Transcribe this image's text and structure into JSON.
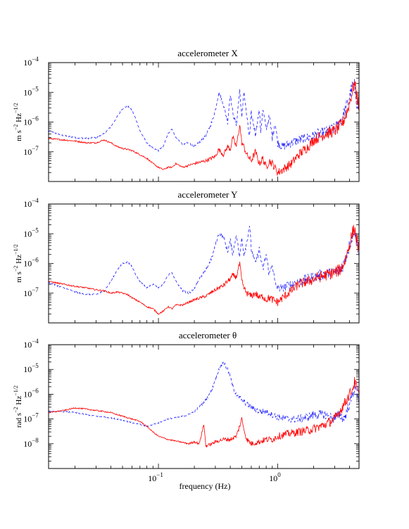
{
  "chart_data": [
    {
      "type": "line",
      "title": "accelerometer X",
      "ylabel": "m s^{-2} Hz^{-1/2}",
      "xscale": "log",
      "yscale": "log",
      "xlim": [
        0.012,
        4.8
      ],
      "ylim": [
        1e-08,
        0.0001
      ],
      "yticks": [
        1e-07,
        1e-06,
        1e-05,
        0.0001
      ],
      "xticks": [
        0.1,
        1
      ],
      "series": [
        {
          "style": "dashed",
          "color": "#1f1fff",
          "x": [
            0.012,
            0.016,
            0.02,
            0.025,
            0.03,
            0.035,
            0.04,
            0.045,
            0.05,
            0.055,
            0.06,
            0.065,
            0.07,
            0.08,
            0.09,
            0.1,
            0.11,
            0.12,
            0.13,
            0.14,
            0.16,
            0.18,
            0.2,
            0.22,
            0.25,
            0.28,
            0.3,
            0.32,
            0.35,
            0.38,
            0.4,
            0.42,
            0.45,
            0.48,
            0.5,
            0.52,
            0.55,
            0.58,
            0.6,
            0.65,
            0.7,
            0.72,
            0.75,
            0.8,
            0.85,
            0.9,
            0.95,
            1.0,
            1.1,
            1.3,
            1.5,
            1.8,
            2.0,
            2.5,
            3.0,
            3.3,
            3.6,
            3.9,
            4.2,
            4.4,
            4.6,
            4.8
          ],
          "y": [
            5e-07,
            3.5e-07,
            3e-07,
            2.8e-07,
            3e-07,
            4e-07,
            7e-07,
            1.5e-06,
            2.8e-06,
            3.5e-06,
            2.5e-06,
            1.2e-06,
            5e-07,
            2e-07,
            1.3e-07,
            1.1e-07,
            1.5e-07,
            4e-07,
            6e-07,
            3e-07,
            1.8e-07,
            2e-07,
            1.5e-07,
            2e-07,
            3.5e-07,
            1e-06,
            2.5e-06,
            1e-05,
            4e-06,
            1e-06,
            9e-06,
            2e-06,
            8e-07,
            1.2e-05,
            1.3e-06,
            1.2e-05,
            1.5e-06,
            3e-07,
            2e-06,
            4e-07,
            2.5e-06,
            5e-07,
            2.5e-06,
            6e-07,
            1.5e-06,
            3e-07,
            1e-06,
            2e-07,
            1.5e-07,
            2e-07,
            2.5e-07,
            3e-07,
            3.5e-07,
            4.5e-07,
            6e-07,
            1e-06,
            2e-06,
            5e-06,
            1.5e-05,
            1.7e-05,
            5e-06,
            2.5e-06
          ]
        },
        {
          "style": "solid",
          "color": "#ff0000",
          "x": [
            0.012,
            0.016,
            0.02,
            0.025,
            0.03,
            0.035,
            0.04,
            0.045,
            0.05,
            0.055,
            0.06,
            0.07,
            0.08,
            0.09,
            0.1,
            0.11,
            0.12,
            0.13,
            0.14,
            0.16,
            0.18,
            0.2,
            0.25,
            0.3,
            0.32,
            0.35,
            0.38,
            0.4,
            0.42,
            0.45,
            0.48,
            0.5,
            0.52,
            0.55,
            0.6,
            0.65,
            0.7,
            0.75,
            0.8,
            0.85,
            0.9,
            1.0,
            1.1,
            1.3,
            1.5,
            1.8,
            2.0,
            2.5,
            3.0,
            3.3,
            3.6,
            3.9,
            4.2,
            4.4,
            4.6,
            4.8
          ],
          "y": [
            2.8e-07,
            2.5e-07,
            2.3e-07,
            2e-07,
            2e-07,
            2.5e-07,
            2e-07,
            1.5e-07,
            1.3e-07,
            1.2e-07,
            1.1e-07,
            8e-08,
            6e-08,
            4e-08,
            3e-08,
            2.5e-08,
            3e-08,
            3e-08,
            4e-08,
            3e-08,
            3.5e-08,
            4e-08,
            5e-08,
            7e-08,
            1.2e-07,
            8e-08,
            1.5e-07,
            1.2e-07,
            3e-07,
            1.5e-07,
            8e-07,
            2e-07,
            1.5e-07,
            8e-08,
            5e-08,
            1e-07,
            4e-08,
            6e-08,
            3e-08,
            5e-08,
            4e-08,
            2e-08,
            2.5e-08,
            4e-08,
            8e-08,
            1.5e-07,
            2.5e-07,
            4e-07,
            5e-07,
            7e-07,
            1.2e-06,
            3e-06,
            1e-05,
            2e-05,
            8e-06,
            3e-06
          ]
        }
      ]
    },
    {
      "type": "line",
      "title": "accelerometer Y",
      "ylabel": "m s^{-2} Hz^{-1/2}",
      "xscale": "log",
      "yscale": "log",
      "xlim": [
        0.012,
        4.8
      ],
      "ylim": [
        1e-08,
        0.0001
      ],
      "yticks": [
        1e-07,
        1e-06,
        1e-05,
        0.0001
      ],
      "xticks": [
        0.1,
        1
      ],
      "series": [
        {
          "style": "dashed",
          "color": "#1f1fff",
          "x": [
            0.012,
            0.016,
            0.02,
            0.025,
            0.03,
            0.035,
            0.04,
            0.045,
            0.05,
            0.055,
            0.06,
            0.065,
            0.07,
            0.08,
            0.09,
            0.1,
            0.11,
            0.12,
            0.13,
            0.14,
            0.16,
            0.18,
            0.2,
            0.22,
            0.25,
            0.28,
            0.3,
            0.32,
            0.35,
            0.38,
            0.4,
            0.42,
            0.45,
            0.48,
            0.5,
            0.52,
            0.55,
            0.58,
            0.6,
            0.65,
            0.7,
            0.75,
            0.8,
            0.85,
            0.9,
            0.95,
            1.0,
            1.1,
            1.3,
            1.5,
            1.8,
            2.0,
            2.5,
            3.0,
            3.3,
            3.6,
            3.9,
            4.2,
            4.4,
            4.6,
            4.8
          ],
          "y": [
            2.3e-07,
            1.5e-07,
            1.1e-07,
            9e-08,
            9e-08,
            1.2e-07,
            2.5e-07,
            6e-07,
            1e-06,
            1.1e-06,
            8e-07,
            4e-07,
            2.5e-07,
            1.5e-07,
            2e-07,
            1.5e-07,
            2e-07,
            4e-07,
            5e-07,
            2.5e-07,
            1.2e-07,
            1e-07,
            1.5e-07,
            3e-07,
            6e-07,
            1.5e-06,
            4e-06,
            1e-05,
            8e-06,
            2.5e-06,
            6e-06,
            2e-06,
            1e-05,
            1.5e-06,
            8e-06,
            2e-06,
            5e-06,
            2e-05,
            3e-06,
            1e-06,
            3e-06,
            6e-07,
            2e-06,
            4e-07,
            1e-06,
            2e-07,
            1.5e-07,
            1.5e-07,
            2e-07,
            2.5e-07,
            3e-07,
            3.5e-07,
            4.5e-07,
            5e-07,
            6e-07,
            1e-06,
            3e-06,
            8e-06,
            1.5e-05,
            5e-06,
            2.5e-06
          ]
        },
        {
          "style": "solid",
          "color": "#ff0000",
          "x": [
            0.012,
            0.016,
            0.02,
            0.025,
            0.03,
            0.035,
            0.04,
            0.045,
            0.05,
            0.055,
            0.06,
            0.07,
            0.08,
            0.09,
            0.1,
            0.11,
            0.12,
            0.13,
            0.14,
            0.16,
            0.18,
            0.2,
            0.25,
            0.3,
            0.32,
            0.35,
            0.38,
            0.4,
            0.42,
            0.45,
            0.48,
            0.5,
            0.52,
            0.55,
            0.6,
            0.65,
            0.7,
            0.75,
            0.8,
            0.85,
            0.9,
            1.0,
            1.1,
            1.3,
            1.5,
            1.8,
            2.0,
            2.5,
            3.0,
            3.3,
            3.6,
            3.9,
            4.2,
            4.4,
            4.6,
            4.8
          ],
          "y": [
            2.5e-07,
            2e-07,
            1.7e-07,
            1.5e-07,
            1.3e-07,
            1.2e-07,
            1e-07,
            1.1e-07,
            1e-07,
            9e-08,
            7e-08,
            5e-08,
            3.5e-08,
            3e-08,
            2e-08,
            2.5e-08,
            3.5e-08,
            3e-08,
            4e-08,
            4e-08,
            5e-08,
            6e-08,
            8e-08,
            1.3e-07,
            1.5e-07,
            1.8e-07,
            2.5e-07,
            3e-07,
            4e-07,
            3.5e-07,
            1e-06,
            2.5e-07,
            1.5e-07,
            1e-07,
            8e-08,
            1e-07,
            7e-08,
            8e-08,
            6e-08,
            7e-08,
            6e-08,
            5e-08,
            7e-08,
            1.2e-07,
            2e-07,
            2.5e-07,
            3e-07,
            4e-07,
            5e-07,
            6e-07,
            1e-06,
            3e-06,
            1e-05,
            1.5e-05,
            6e-06,
            3e-06
          ]
        }
      ]
    },
    {
      "type": "line",
      "title": "accelerometer θ",
      "ylabel": "rad s^{-2} Hz^{-1/2}",
      "xscale": "log",
      "yscale": "log",
      "xlim": [
        0.012,
        4.8
      ],
      "ylim": [
        1e-09,
        0.0001
      ],
      "yticks": [
        1e-08,
        1e-07,
        1e-06,
        1e-05,
        0.0001
      ],
      "xticks": [
        0.1,
        1
      ],
      "xlabel": "frequency (Hz)",
      "series": [
        {
          "style": "dashed",
          "color": "#1f1fff",
          "x": [
            0.012,
            0.016,
            0.02,
            0.025,
            0.03,
            0.035,
            0.04,
            0.045,
            0.05,
            0.06,
            0.07,
            0.08,
            0.09,
            0.1,
            0.12,
            0.15,
            0.18,
            0.2,
            0.22,
            0.25,
            0.28,
            0.3,
            0.32,
            0.35,
            0.38,
            0.4,
            0.42,
            0.45,
            0.5,
            0.55,
            0.6,
            0.7,
            0.8,
            0.9,
            1.0,
            1.2,
            1.5,
            1.8,
            2.0,
            2.5,
            3.0,
            3.3,
            3.6,
            3.9,
            4.2,
            4.4,
            4.6,
            4.8
          ],
          "y": [
            2e-07,
            2e-07,
            1.8e-07,
            1.5e-07,
            1.3e-07,
            1.2e-07,
            1.1e-07,
            1e-07,
            9e-08,
            7e-08,
            6e-08,
            5e-08,
            6e-08,
            7e-08,
            1e-07,
            1.2e-07,
            1.5e-07,
            2e-07,
            3e-07,
            6e-07,
            1.5e-06,
            4e-06,
            1e-05,
            2e-05,
            1e-05,
            5e-06,
            2e-06,
            1e-06,
            6e-07,
            4e-07,
            3e-07,
            2e-07,
            2e-07,
            1.5e-07,
            1.2e-07,
            1e-07,
            1e-07,
            1.2e-07,
            1.5e-07,
            1.5e-07,
            1e-07,
            1.5e-07,
            1e-07,
            3e-07,
            8e-07,
            2e-06,
            1.5e-06,
            6e-07
          ]
        },
        {
          "style": "solid",
          "color": "#ff0000",
          "x": [
            0.012,
            0.016,
            0.02,
            0.025,
            0.03,
            0.035,
            0.04,
            0.045,
            0.05,
            0.06,
            0.07,
            0.08,
            0.09,
            0.1,
            0.12,
            0.15,
            0.18,
            0.2,
            0.22,
            0.24,
            0.25,
            0.28,
            0.3,
            0.35,
            0.4,
            0.45,
            0.5,
            0.52,
            0.55,
            0.6,
            0.7,
            0.8,
            0.9,
            1.0,
            1.2,
            1.5,
            1.8,
            2.0,
            2.5,
            3.0,
            3.3,
            3.6,
            3.9,
            4.2,
            4.4,
            4.6,
            4.8
          ],
          "y": [
            1.8e-07,
            2.2e-07,
            2.8e-07,
            2.5e-07,
            2.2e-07,
            2e-07,
            1.8e-07,
            1.5e-07,
            1.3e-07,
            1e-07,
            8e-08,
            5e-08,
            3e-08,
            2e-08,
            1.5e-08,
            1.2e-08,
            1e-08,
            1.2e-08,
            1e-08,
            6e-08,
            8e-09,
            1e-08,
            1.2e-08,
            1.5e-08,
            1.5e-08,
            2e-08,
            1e-07,
            4e-08,
            1.5e-08,
            1e-08,
            1.2e-08,
            1.5e-08,
            1.5e-08,
            2e-08,
            2.5e-08,
            3e-08,
            3.5e-08,
            4e-08,
            6e-08,
            1e-07,
            2e-07,
            4e-07,
            8e-07,
            1.5e-06,
            3e-06,
            2e-06,
            8e-07
          ]
        }
      ]
    }
  ]
}
